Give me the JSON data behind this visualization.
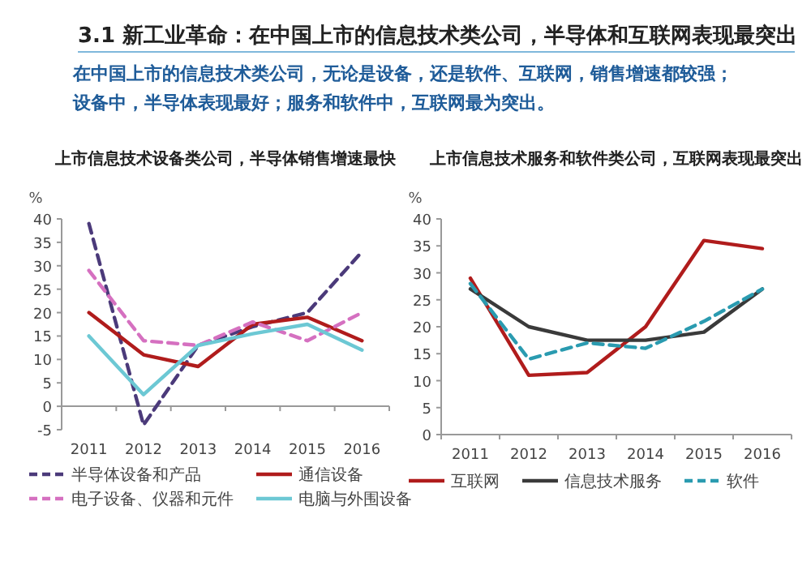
{
  "chart_data": [
    {
      "type": "other",
      "title": "3.1 新工业革命：在中国上市的信息技术类公司，半导体和互联网表现最突出",
      "annotations": [
        "在中国上市的信息技术类公司，无论是设备，还是软件、互联网，销售增速都较强；",
        "设备中，半导体表现最好；服务和软件中，互联网最为突出。"
      ]
    },
    {
      "type": "line",
      "title": "上市信息技术设备类公司，半导体销售增速最快",
      "ylabel": "%",
      "categories": [
        "2011",
        "2012",
        "2013",
        "2014",
        "2015",
        "2016"
      ],
      "ylim": [
        -5,
        40
      ],
      "yticks": [
        -5,
        0,
        5,
        10,
        15,
        20,
        25,
        30,
        35,
        40
      ],
      "legend": "bottom",
      "series": [
        {
          "name": "半导体设备和产品",
          "color": "#4b3a7a",
          "line_style": "dashed",
          "values": [
            39,
            -4,
            13,
            17,
            20,
            33
          ]
        },
        {
          "name": "通信设备",
          "color": "#b01c1c",
          "line_style": "solid",
          "values": [
            20,
            11,
            8.5,
            17.5,
            19,
            14
          ]
        },
        {
          "name": "电子设备、仪器和元件",
          "color": "#d570c0",
          "line_style": "dashed",
          "values": [
            29,
            14,
            13,
            18,
            14,
            20
          ]
        },
        {
          "name": "电脑与外围设备",
          "color": "#6cc8d4",
          "line_style": "solid",
          "values": [
            15,
            2.5,
            13,
            15.5,
            17.5,
            12
          ]
        }
      ]
    },
    {
      "type": "line",
      "title": "上市信息技术服务和软件类公司，互联网表现最突出",
      "ylabel": "%",
      "categories": [
        "2011",
        "2012",
        "2013",
        "2014",
        "2015",
        "2016"
      ],
      "ylim": [
        0,
        40
      ],
      "yticks": [
        0,
        5,
        10,
        15,
        20,
        25,
        30,
        35,
        40
      ],
      "legend": "bottom",
      "series": [
        {
          "name": "互联网",
          "color": "#b01c1c",
          "line_style": "solid",
          "values": [
            29,
            11,
            11.5,
            20,
            36,
            34.5
          ]
        },
        {
          "name": "信息技术服务",
          "color": "#3a3a3a",
          "line_style": "solid",
          "values": [
            27,
            20,
            17.5,
            17.5,
            19,
            27
          ]
        },
        {
          "name": "软件",
          "color": "#2a9bb0",
          "line_style": "dashed",
          "values": [
            28,
            14,
            17,
            16,
            21,
            27
          ]
        }
      ]
    }
  ]
}
